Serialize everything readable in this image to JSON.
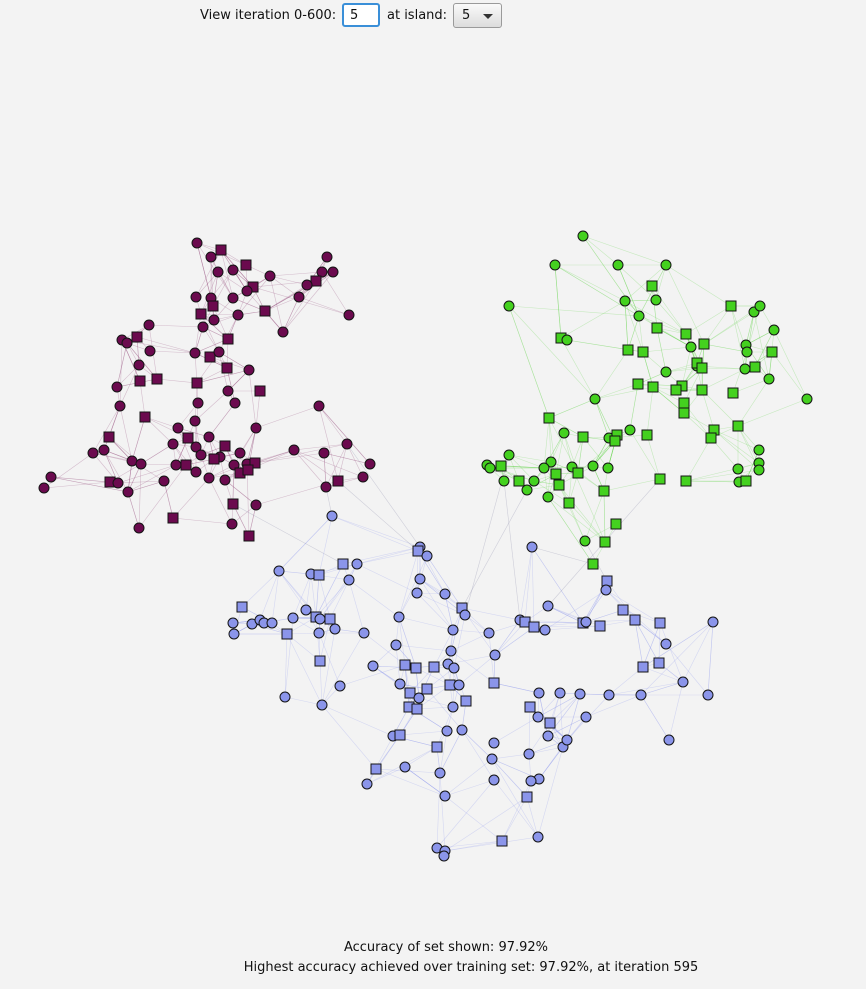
{
  "controls": {
    "iteration_label": "View iteration 0-600:",
    "iteration_value": "5",
    "island_label": "at island:",
    "island_value": "5"
  },
  "footer": {
    "accuracy_shown": "Accuracy of set shown: 97.92%",
    "highest_accuracy": "Highest accuracy achieved over training set: 97.92%, at iteration 595"
  },
  "graph": {
    "clusters": [
      {
        "name": "purple",
        "fill": "#6b0a4e",
        "edge": "#9a5585"
      },
      {
        "name": "green",
        "fill": "#44d11f",
        "edge": "#6fd85a"
      },
      {
        "name": "blue",
        "fill": "#8b95ea",
        "edge": "#9aa4ee"
      }
    ],
    "node_border": "#141414"
  }
}
